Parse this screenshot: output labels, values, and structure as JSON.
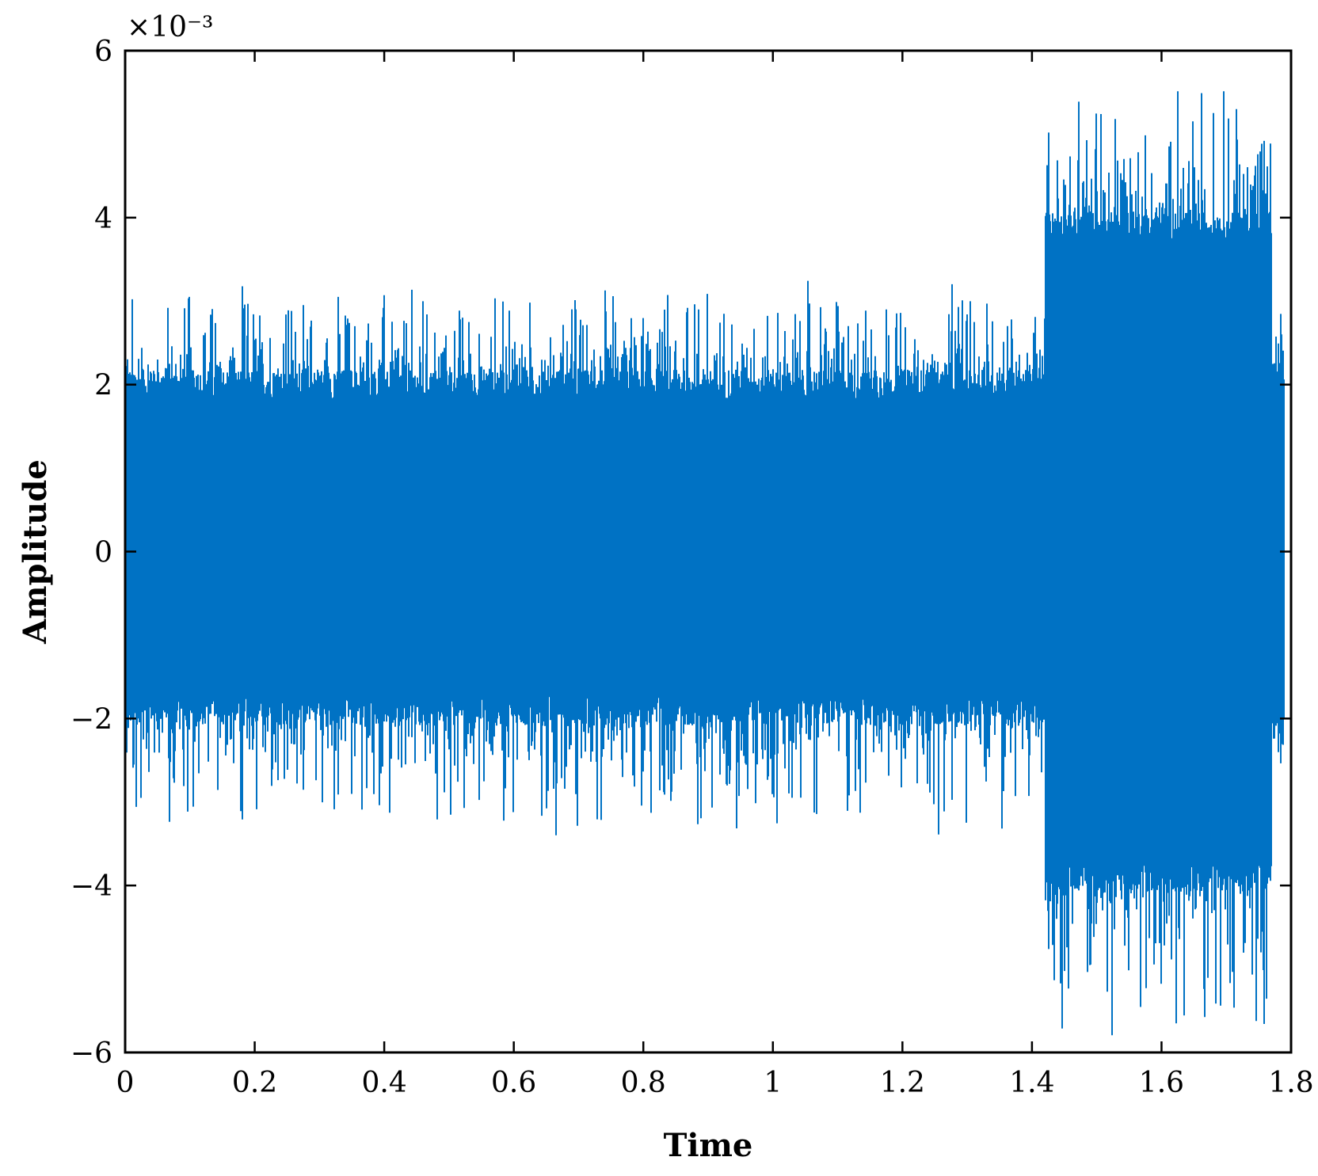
{
  "chart_data": {
    "type": "line",
    "title": "",
    "xlabel": "Time",
    "ylabel": "Amplitude",
    "xlim": [
      0,
      1.8
    ],
    "ylim": [
      -6,
      6
    ],
    "y_scale_multiplier": "×10⁻³",
    "grid": false,
    "legend": "none",
    "series_color": "#0072c4",
    "x_ticks": [
      "0",
      "0.2",
      "0.4",
      "0.6",
      "0.8",
      "1",
      "1.2",
      "1.4",
      "1.6",
      "1.8"
    ],
    "x_tick_values": [
      0,
      0.2,
      0.4,
      0.6,
      0.8,
      1.0,
      1.2,
      1.4,
      1.6,
      1.8
    ],
    "y_ticks": [
      "−6",
      "−4",
      "−2",
      "0",
      "2",
      "4",
      "6"
    ],
    "y_tick_values": [
      -6,
      -4,
      -2,
      0,
      2,
      4,
      6
    ],
    "signal": {
      "x_start": 0,
      "x_end": 1.79,
      "segments": [
        {
          "x_from": 0,
          "x_to": 1.42,
          "typical_max": 2.0,
          "typical_min": -1.9,
          "peak_max": 3.1,
          "peak_min": -3.3
        },
        {
          "x_from": 1.42,
          "x_to": 1.77,
          "typical_max": 3.9,
          "typical_min": -3.9,
          "peak_max": 5.5,
          "peak_min": -5.7
        },
        {
          "x_from": 1.77,
          "x_to": 1.79,
          "typical_max": 2.1,
          "typical_min": -2.1,
          "peak_max": 2.8,
          "peak_min": -2.7
        }
      ]
    }
  }
}
